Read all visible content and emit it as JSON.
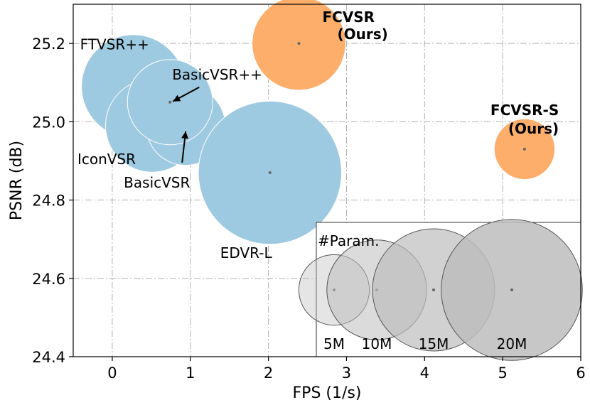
{
  "chart_data": {
    "type": "scatter",
    "title": "",
    "xlabel": "FPS (1/s)",
    "ylabel": "PSNR (dB)",
    "xlim": [
      -0.5,
      6
    ],
    "ylim": [
      24.4,
      25.3
    ],
    "xticks": [
      "0",
      "1",
      "2",
      "3",
      "4",
      "5",
      "6"
    ],
    "yticks": [
      "24.4",
      "24.6",
      "24.8",
      "25.0",
      "25.2"
    ],
    "grid": true,
    "colors": {
      "baseline": "#9ecae1",
      "ours": "#fdae6b",
      "legend": "#bdbdbd"
    },
    "points": [
      {
        "name": "FTVSR++",
        "fps": 0.27,
        "psnr": 25.09,
        "params_m": 10.8,
        "ours": false
      },
      {
        "name": "IconVSR",
        "fps": 0.51,
        "psnr": 24.99,
        "params_m": 8.7,
        "ours": false
      },
      {
        "name": "BasicVSR",
        "fps": 0.94,
        "psnr": 24.99,
        "params_m": 6.3,
        "ours": false
      },
      {
        "name": "BasicVSR++",
        "fps": 0.74,
        "psnr": 25.05,
        "params_m": 7.3,
        "ours": false
      },
      {
        "name": "EDVR-L",
        "fps": 2.02,
        "psnr": 24.87,
        "params_m": 20.6,
        "ours": false
      },
      {
        "name": "FCVSR",
        "fps": 2.39,
        "psnr": 25.2,
        "params_m": 8.8,
        "ours": true
      },
      {
        "name": "FCVSR-S",
        "fps": 5.28,
        "psnr": 24.93,
        "params_m": 3.7,
        "ours": true
      }
    ],
    "ours_tag": "(Ours)",
    "legend": {
      "title": "#Param.",
      "placement": "bottom-right",
      "entries": [
        {
          "label": "5M",
          "params_m": 5
        },
        {
          "label": "10M",
          "params_m": 10
        },
        {
          "label": "15M",
          "params_m": 15
        },
        {
          "label": "20M",
          "params_m": 20
        }
      ]
    }
  }
}
